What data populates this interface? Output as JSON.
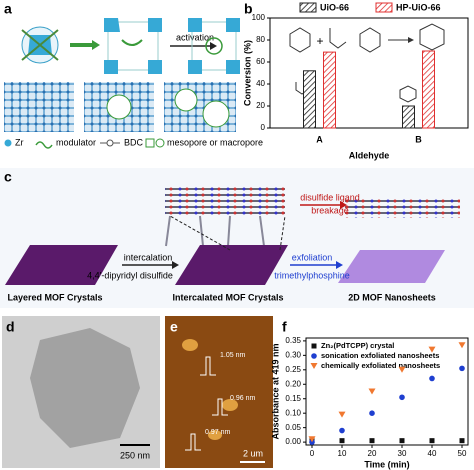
{
  "panels": {
    "a": {
      "label": "a",
      "activation": "activation",
      "legend": [
        "Zr",
        "modulator",
        "BDC",
        "mesopore or macropore"
      ]
    },
    "c": {
      "label": "c",
      "disulfide": "disulfide ligand",
      "breakage": "breakage",
      "intercalation": "intercalation",
      "reagent1": "4,4'-dipyridyl disulfide",
      "exfoliation": "exfoliation",
      "reagent2": "trimethylphosphine",
      "stage1": "Layered MOF Crystals",
      "stage2": "Intercalated MOF Crystals",
      "stage3": "2D MOF Nanosheets"
    },
    "d": {
      "label": "d",
      "scale": "250 nm"
    },
    "e": {
      "label": "e",
      "heights": [
        "1.05 nm",
        "0.96 nm",
        "0.97 nm"
      ],
      "scale": "2 um"
    }
  },
  "chart_data": [
    {
      "type": "bar",
      "label": "b",
      "plus": "+",
      "categories": [
        "A",
        "B"
      ],
      "series": [
        {
          "name": "UiO-66",
          "color": "#222222",
          "values": [
            52,
            20
          ]
        },
        {
          "name": "HP-UiO-66",
          "color": "#e03030",
          "values": [
            69,
            70
          ]
        }
      ],
      "ylim": [
        0,
        100
      ],
      "yticks": [
        0,
        20,
        40,
        60,
        80,
        100
      ],
      "ylabel": "Conversion (%)",
      "xlabel": "Aldehyde"
    },
    {
      "type": "scatter",
      "label": "f",
      "x": [
        0,
        10,
        20,
        30,
        40,
        50
      ],
      "xlim": [
        -2,
        52
      ],
      "xticks": [
        0,
        10,
        20,
        30,
        40,
        50
      ],
      "series": [
        {
          "name": "Zn₂(PdTCPP) crystal",
          "color": "#111111",
          "marker": "square",
          "values": [
            0.005,
            0.005,
            0.005,
            0.005,
            0.005,
            0.005
          ]
        },
        {
          "name": "sonication exfoliated nanosheets",
          "color": "#1f3fd0",
          "marker": "circle",
          "values": [
            0.0,
            0.04,
            0.1,
            0.155,
            0.22,
            0.255
          ]
        },
        {
          "name": "chemically exfoliated nanosheets",
          "color": "#f07830",
          "marker": "triangle",
          "values": [
            0.01,
            0.095,
            0.175,
            0.25,
            0.32,
            0.335
          ]
        }
      ],
      "ylim": [
        -0.01,
        0.36
      ],
      "yticks": [
        {
          "value": 0,
          "label": "0.00"
        },
        {
          "value": 0.05,
          "label": "0.05"
        },
        {
          "value": 0.1,
          "label": "0.10"
        },
        {
          "value": 0.15,
          "label": "0.15"
        },
        {
          "value": 0.2,
          "label": "0.20"
        },
        {
          "value": 0.25,
          "label": "0.25"
        },
        {
          "value": 0.3,
          "label": "0.30"
        },
        {
          "value": 0.35,
          "label": "0.35"
        }
      ],
      "ylabel": "Absorbance at 419 nm",
      "xlabel": "Time (min)"
    }
  ]
}
